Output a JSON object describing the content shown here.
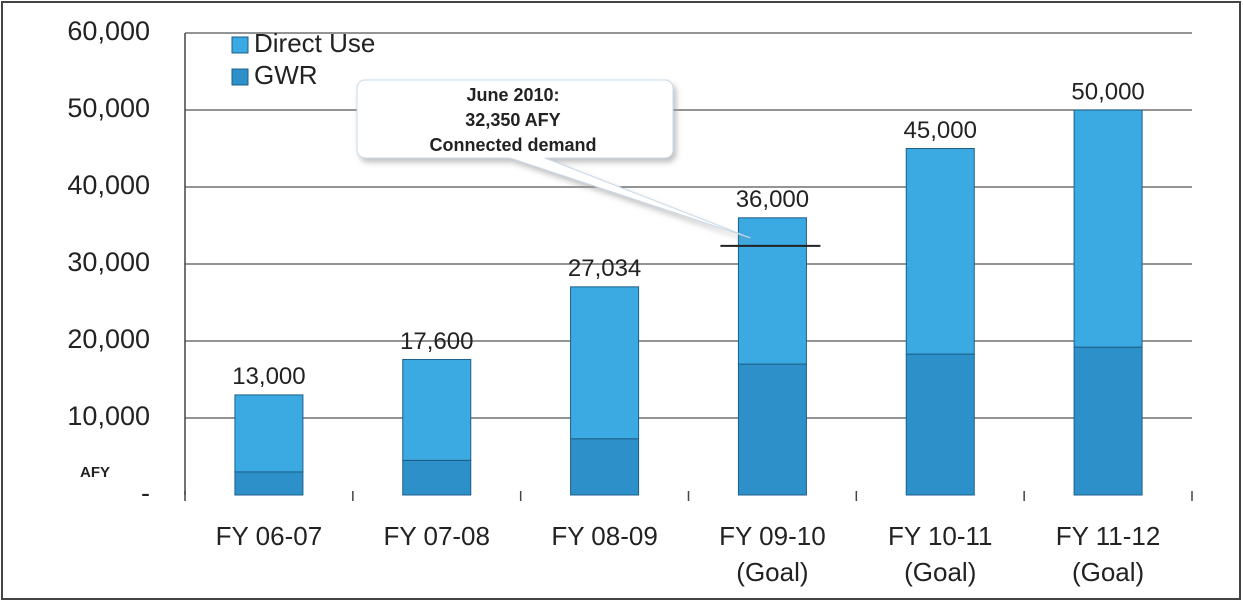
{
  "chart_data": {
    "type": "stacked_bar",
    "y_label": "AFY",
    "categories": [
      [
        "FY 06-07"
      ],
      [
        "FY 07-08"
      ],
      [
        "FY 08-09"
      ],
      [
        "FY 09-10",
        "(Goal)"
      ],
      [
        "FY 10-11",
        "(Goal)"
      ],
      [
        "FY 11-12",
        "(Goal)"
      ]
    ],
    "series": [
      {
        "name": "GWR",
        "color": "#2e90c8",
        "values": [
          3000,
          4500,
          7300,
          17000,
          18300,
          19200
        ]
      },
      {
        "name": "Direct Use",
        "color": "#3ba9e2",
        "values": [
          10000,
          13100,
          19734,
          19000,
          26700,
          30800
        ]
      }
    ],
    "totals": [
      13000,
      17600,
      27034,
      36000,
      45000,
      50000
    ],
    "total_labels": [
      "13,000",
      "17,600",
      "27,034",
      "36,000",
      "45,000",
      "50,000"
    ],
    "annotation": {
      "lines": [
        "June 2010:",
        "32,350 AFY",
        "Connected demand"
      ],
      "value": 32350
    },
    "ylim": [
      0,
      60000
    ],
    "yticks": [
      {
        "value": 0,
        "label": "-"
      },
      {
        "value": 10000,
        "label": "10,000"
      },
      {
        "value": 20000,
        "label": "20,000"
      },
      {
        "value": 30000,
        "label": "30,000"
      },
      {
        "value": 40000,
        "label": "40,000"
      },
      {
        "value": 50000,
        "label": "50,000"
      },
      {
        "value": 60000,
        "label": "60,000"
      }
    ],
    "grid": true
  }
}
